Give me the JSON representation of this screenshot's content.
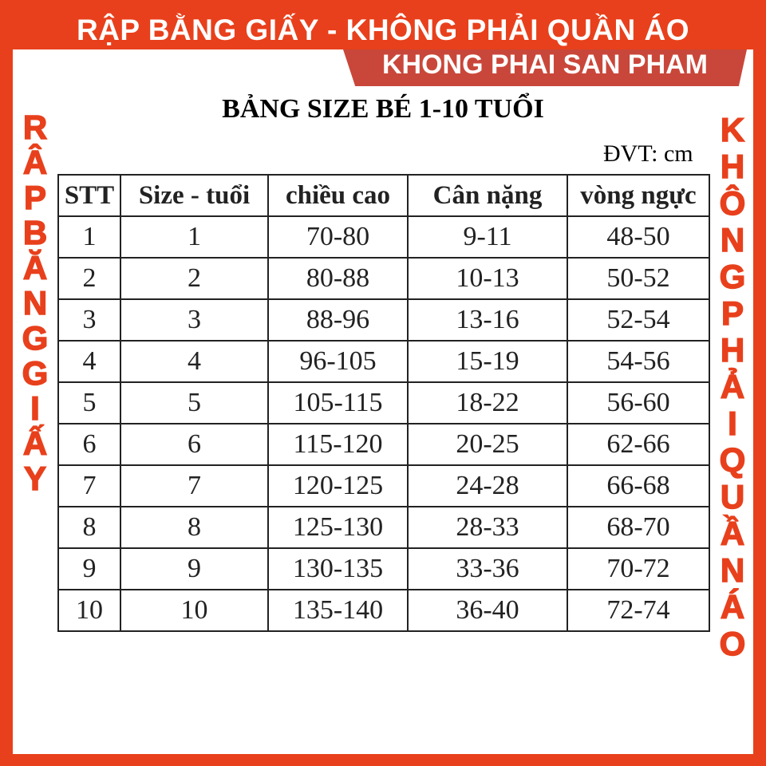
{
  "banner": {
    "top": "RẬP BẰNG GIẤY - KHÔNG PHẢI QUẦN ÁO",
    "sub": "KHONG PHAI SAN PHAM"
  },
  "title": "BẢNG SIZE BÉ 1-10 TUỔI",
  "unit": "ĐVT: cm",
  "colors": {
    "border": "#e8401c",
    "sub_banner": "#c9473a"
  },
  "table": {
    "headers": [
      "STT",
      "Size - tuổi",
      "chiều cao",
      "Cân nặng",
      "vòng ngực"
    ],
    "rows": [
      [
        "1",
        "1",
        "70-80",
        "9-11",
        "48-50"
      ],
      [
        "2",
        "2",
        "80-88",
        "10-13",
        "50-52"
      ],
      [
        "3",
        "3",
        "88-96",
        "13-16",
        "52-54"
      ],
      [
        "4",
        "4",
        "96-105",
        "15-19",
        "54-56"
      ],
      [
        "5",
        "5",
        "105-115",
        "18-22",
        "56-60"
      ],
      [
        "6",
        "6",
        "115-120",
        "20-25",
        "62-66"
      ],
      [
        "7",
        "7",
        "120-125",
        "24-28",
        "66-68"
      ],
      [
        "8",
        "8",
        "125-130",
        "28-33",
        "68-70"
      ],
      [
        "9",
        "9",
        "130-135",
        "33-36",
        "70-72"
      ],
      [
        "10",
        "10",
        "135-140",
        "36-40",
        "72-74"
      ]
    ]
  },
  "watermark_left": [
    "R",
    "Â",
    "P",
    "B",
    "Ă",
    "N",
    "G",
    "G",
    "I",
    "Ấ",
    "Y"
  ],
  "watermark_right": [
    "K",
    "H",
    "Ô",
    "N",
    "G",
    "P",
    "H",
    "Ả",
    "I",
    "Q",
    "U",
    "Ầ",
    "N",
    "Á",
    "O"
  ]
}
